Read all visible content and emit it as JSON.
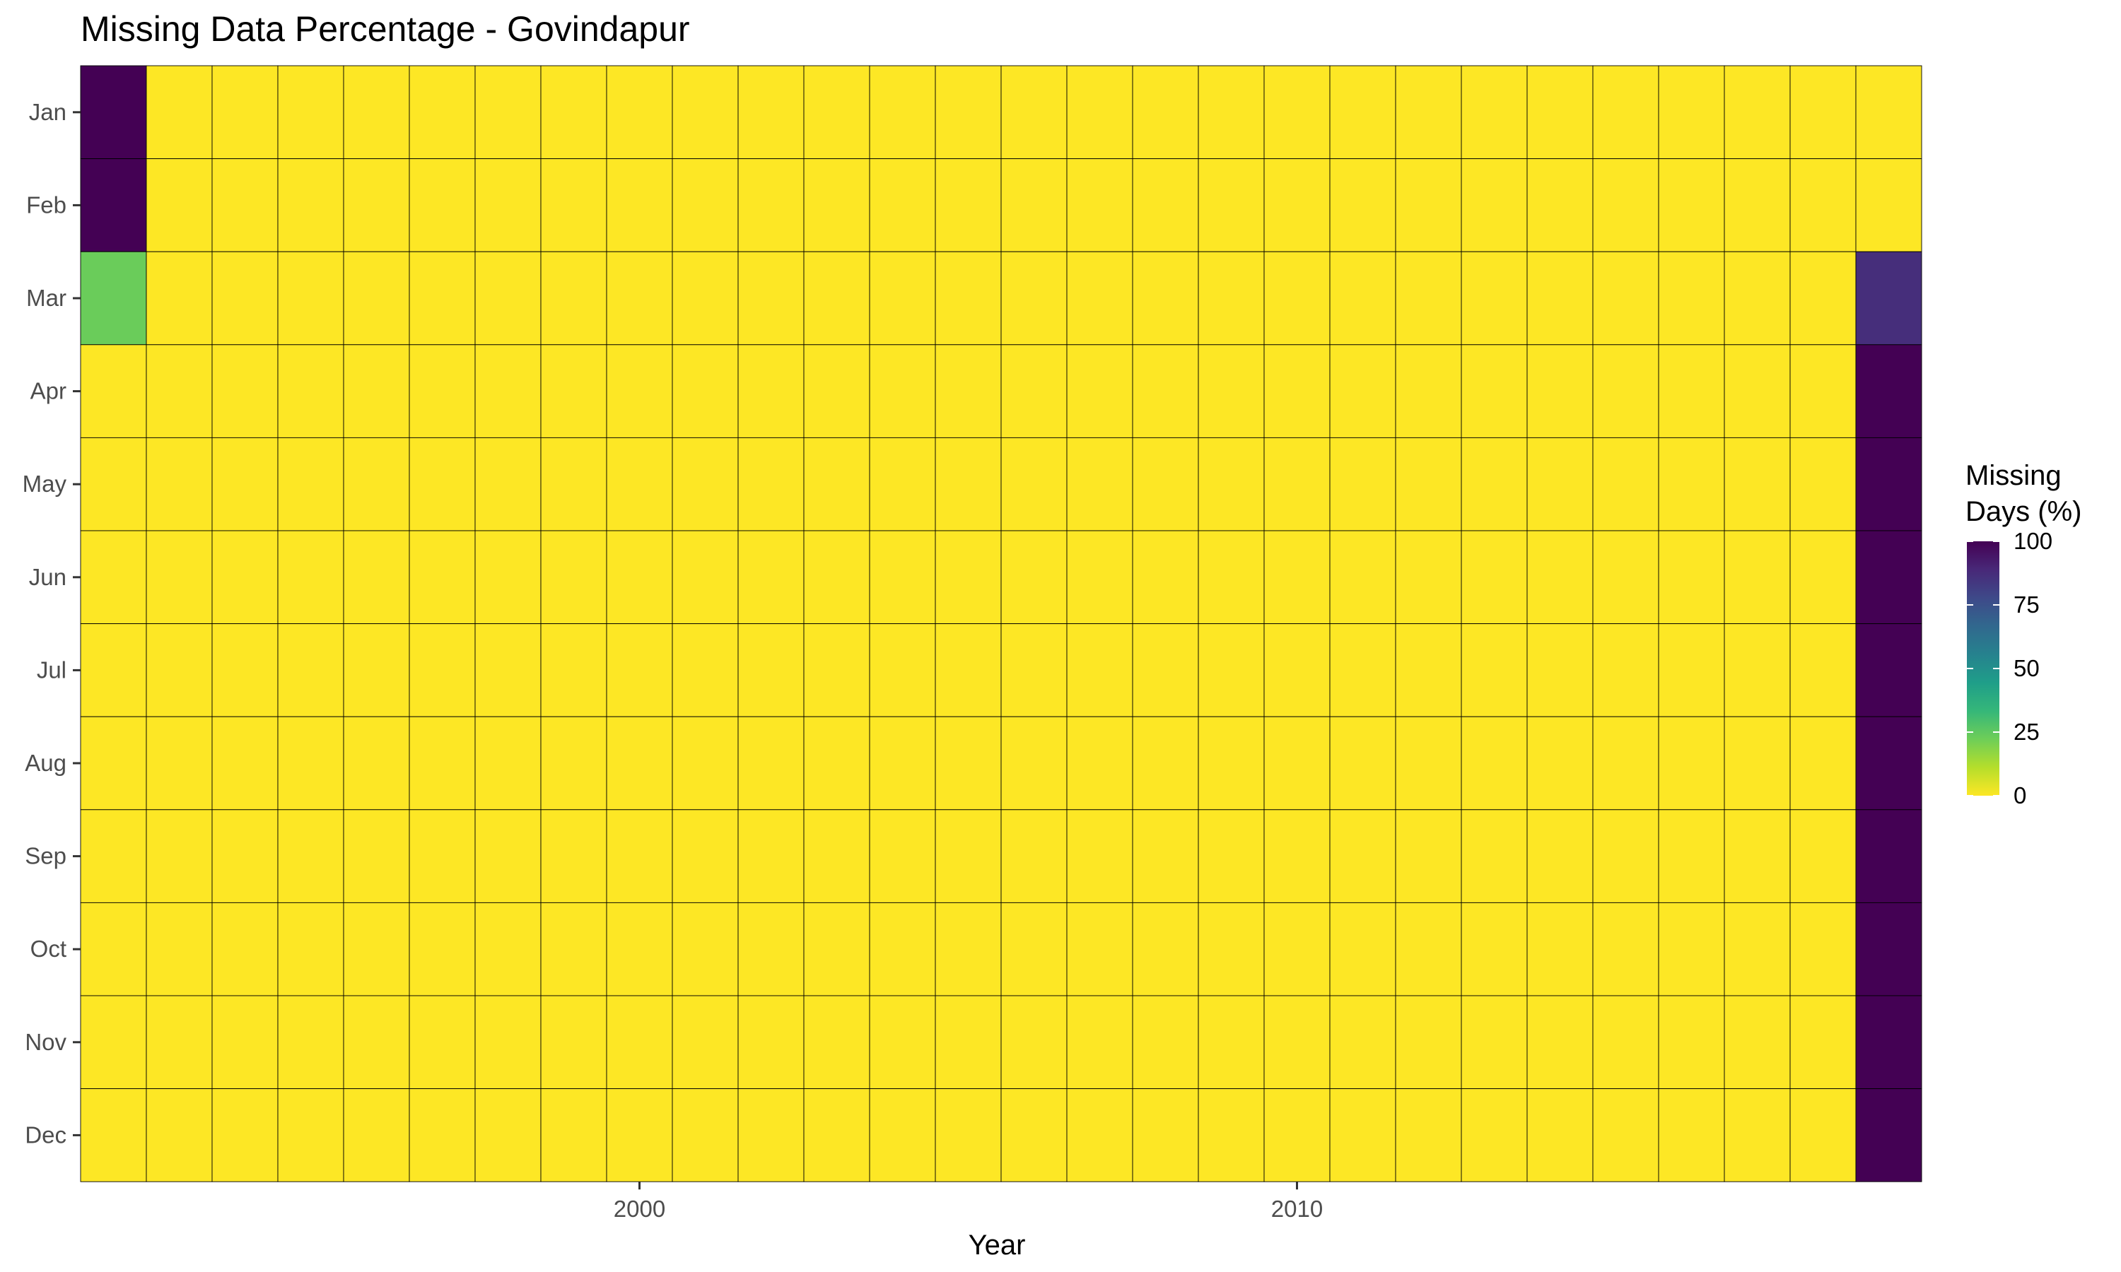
{
  "chart_data": {
    "type": "heatmap",
    "title": "Missing Data Percentage - Govindapur",
    "xlabel": "Year",
    "ylabel": "",
    "x": [
      1992,
      1993,
      1994,
      1995,
      1996,
      1997,
      1998,
      1999,
      2000,
      2001,
      2002,
      2003,
      2004,
      2005,
      2006,
      2007,
      2008,
      2009,
      2010,
      2011,
      2012,
      2013,
      2014,
      2015,
      2016,
      2017,
      2018,
      2019
    ],
    "x_ticks": [
      2000,
      2010
    ],
    "y": [
      "Jan",
      "Feb",
      "Mar",
      "Apr",
      "May",
      "Jun",
      "Jul",
      "Aug",
      "Sep",
      "Oct",
      "Nov",
      "Dec"
    ],
    "default_value": 0,
    "nonzero_cells": [
      {
        "x": 1992,
        "y": "Jan",
        "value": 100
      },
      {
        "x": 1992,
        "y": "Feb",
        "value": 100
      },
      {
        "x": 1992,
        "y": "Mar",
        "value": 23
      },
      {
        "x": 2019,
        "y": "Mar",
        "value": 87
      },
      {
        "x": 2019,
        "y": "Apr",
        "value": 100
      },
      {
        "x": 2019,
        "y": "May",
        "value": 100
      },
      {
        "x": 2019,
        "y": "Jun",
        "value": 100
      },
      {
        "x": 2019,
        "y": "Jul",
        "value": 100
      },
      {
        "x": 2019,
        "y": "Aug",
        "value": 100
      },
      {
        "x": 2019,
        "y": "Sep",
        "value": 100
      },
      {
        "x": 2019,
        "y": "Oct",
        "value": 100
      },
      {
        "x": 2019,
        "y": "Nov",
        "value": 100
      },
      {
        "x": 2019,
        "y": "Dec",
        "value": 100
      }
    ],
    "colorscale": "viridis (reversed: 0 = yellow, 100 = dark purple)",
    "colors": [
      "#fde725",
      "#b5de2b",
      "#6ece58",
      "#35b779",
      "#1f9e89",
      "#26828e",
      "#31688e",
      "#3e4989",
      "#482878",
      "#440154"
    ],
    "cell_border_color": "#000000",
    "legend": {
      "title_lines": [
        "Missing",
        "Days (%)"
      ],
      "ticks": [
        0,
        25,
        50,
        75,
        100
      ],
      "range": [
        0,
        100
      ],
      "position": "right"
    },
    "grid": false
  }
}
